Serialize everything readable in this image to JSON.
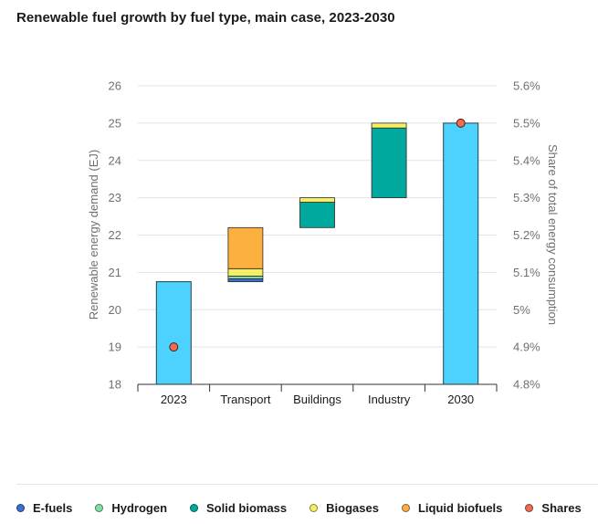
{
  "title": "Renewable fuel growth by fuel type, main case, 2023-2030",
  "colors": {
    "E-fuels": "#3b6fd4",
    "Hydrogen": "#7fe0a5",
    "Solid biomass": "#00a99d",
    "Biogases": "#f6ef63",
    "Liquid biofuels": "#fbb040",
    "Shares": "#f26b4f",
    "Total": "#4dd2ff"
  },
  "legend": [
    {
      "label": "E-fuels",
      "color": "#3b6fd4"
    },
    {
      "label": "Hydrogen",
      "color": "#7fe0a5"
    },
    {
      "label": "Solid biomass",
      "color": "#00a99d"
    },
    {
      "label": "Biogases",
      "color": "#f6ef63"
    },
    {
      "label": "Liquid biofuels",
      "color": "#fbb040"
    },
    {
      "label": "Shares",
      "color": "#f26b4f"
    }
  ],
  "chart_data": {
    "type": "bar",
    "subtype": "waterfall",
    "title": "Renewable fuel growth by fuel type, main case, 2023-2030",
    "categories": [
      "2023",
      "Transport",
      "Buildings",
      "Industry",
      "2030"
    ],
    "ylabel": "Renewable energy demand (EJ)",
    "y2label": "Share of total energy consumption",
    "ylim": [
      18,
      26
    ],
    "y_ticks": [
      "18",
      "19",
      "20",
      "21",
      "22",
      "23",
      "24",
      "25",
      "26"
    ],
    "y2lim": [
      4.8,
      5.6
    ],
    "y2_ticks": [
      "4.8%",
      "4.9%",
      "5%",
      "5.1%",
      "5.2%",
      "5.3%",
      "5.4%",
      "5.5%",
      "5.6%"
    ],
    "grid": true,
    "legend_position": "bottom",
    "totals": [
      {
        "category": "2023",
        "value": 20.75
      },
      {
        "category": "2030",
        "value": 25.0
      }
    ],
    "contributions": [
      {
        "category": "Transport",
        "base": 20.75,
        "segments": [
          {
            "name": "E-fuels",
            "value": 0.08
          },
          {
            "name": "Hydrogen",
            "value": 0.07
          },
          {
            "name": "Biogases",
            "value": 0.2
          },
          {
            "name": "Liquid biofuels",
            "value": 1.1
          }
        ]
      },
      {
        "category": "Buildings",
        "base": 22.2,
        "segments": [
          {
            "name": "Solid biomass",
            "value": 0.68
          },
          {
            "name": "Biogases",
            "value": 0.12
          }
        ]
      },
      {
        "category": "Industry",
        "base": 23.0,
        "segments": [
          {
            "name": "Solid biomass",
            "value": 1.87
          },
          {
            "name": "Biogases",
            "value": 0.13
          }
        ]
      }
    ],
    "shares": [
      {
        "category": "2023",
        "value": 4.9
      },
      {
        "category": "2030",
        "value": 5.5
      }
    ]
  }
}
